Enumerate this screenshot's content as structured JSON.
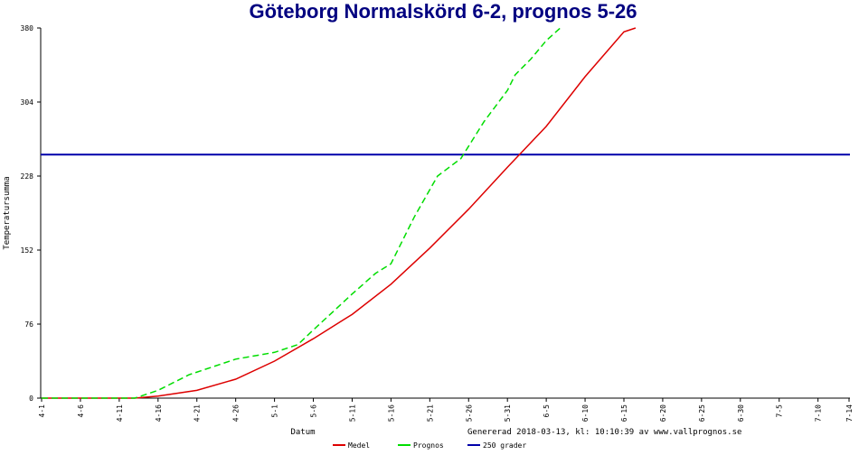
{
  "chart_data": {
    "type": "line",
    "title": "Göteborg Normalskörd 6-2, prognos 5-26",
    "x_label": "Datum",
    "y_label": "Temperatursumma",
    "annotation": "Genererad 2018-03-13, kl: 10:10:39 av www.vallprognos.se",
    "xlim": [
      0,
      104
    ],
    "ylim": [
      0,
      380
    ],
    "yticks": [
      0,
      76,
      152,
      228,
      304,
      380
    ],
    "xticks": [
      {
        "value": 0,
        "label": "4-1"
      },
      {
        "value": 5,
        "label": "4-6"
      },
      {
        "value": 10,
        "label": "4-11"
      },
      {
        "value": 15,
        "label": "4-16"
      },
      {
        "value": 20,
        "label": "4-21"
      },
      {
        "value": 25,
        "label": "4-26"
      },
      {
        "value": 30,
        "label": "5-1"
      },
      {
        "value": 35,
        "label": "5-6"
      },
      {
        "value": 40,
        "label": "5-11"
      },
      {
        "value": 45,
        "label": "5-16"
      },
      {
        "value": 50,
        "label": "5-21"
      },
      {
        "value": 55,
        "label": "5-26"
      },
      {
        "value": 60,
        "label": "5-31"
      },
      {
        "value": 65,
        "label": "6-5"
      },
      {
        "value": 70,
        "label": "6-10"
      },
      {
        "value": 75,
        "label": "6-15"
      },
      {
        "value": 80,
        "label": "6-20"
      },
      {
        "value": 85,
        "label": "6-25"
      },
      {
        "value": 90,
        "label": "6-30"
      },
      {
        "value": 95,
        "label": "7-5"
      },
      {
        "value": 100,
        "label": "7-10"
      },
      {
        "value": 104,
        "label": "7-14"
      }
    ],
    "series": [
      {
        "name": "Medel",
        "color": "#dd0000",
        "dashed": false,
        "x": [
          0,
          12,
          15,
          20,
          25,
          30,
          35,
          40,
          45,
          50,
          55,
          60,
          65,
          70,
          75,
          76.5
        ],
        "values": [
          0,
          0,
          2,
          8,
          19.5,
          38,
          61,
          86,
          117,
          154,
          194,
          237,
          279,
          330,
          376,
          380
        ]
      },
      {
        "name": "Prognos",
        "color": "#00dd00",
        "dashed": true,
        "x": [
          0,
          12,
          15,
          19,
          25,
          30,
          33,
          35,
          40,
          43,
          45,
          48,
          51,
          54,
          57,
          60,
          61,
          63,
          65,
          66.8
        ],
        "values": [
          0,
          0,
          8,
          24,
          40,
          47,
          55,
          70,
          107,
          128,
          138,
          186,
          228,
          246,
          284,
          316,
          332,
          348,
          367,
          380
        ]
      }
    ],
    "reference_line": {
      "name": "250 grader",
      "value": 250,
      "color": "#0000aa"
    }
  }
}
